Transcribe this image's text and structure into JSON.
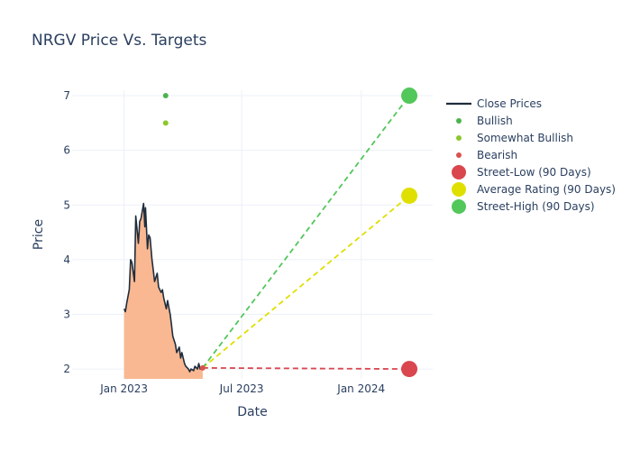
{
  "chart_data": {
    "type": "line",
    "title": "NRGV Price Vs. Targets",
    "xlabel": "Date",
    "ylabel": "Price",
    "xlim": [
      "2022-10-13",
      "2024-04-20"
    ],
    "ylim": [
      1.82,
      7.1
    ],
    "x_ticks": [
      {
        "date": "2023-01-01",
        "label": "Jan 2023"
      },
      {
        "date": "2023-07-01",
        "label": "Jul 2023"
      },
      {
        "date": "2024-01-01",
        "label": "Jan 2024"
      }
    ],
    "y_ticks": [
      2,
      3,
      4,
      5,
      6,
      7
    ],
    "grid": true,
    "legend_position": "right",
    "close_prices": {
      "name": "Close Prices",
      "color": "#1f2d3d",
      "fill_color": "#f9b891",
      "x": [
        "2023-01-01",
        "2023-01-03",
        "2023-01-05",
        "2023-01-09",
        "2023-01-11",
        "2023-01-13",
        "2023-01-17",
        "2023-01-19",
        "2023-01-23",
        "2023-01-25",
        "2023-01-27",
        "2023-01-31",
        "2023-02-02",
        "2023-02-03",
        "2023-02-06",
        "2023-02-08",
        "2023-02-10",
        "2023-02-13",
        "2023-02-15",
        "2023-02-17",
        "2023-02-21",
        "2023-02-23",
        "2023-02-27",
        "2023-03-01",
        "2023-03-03",
        "2023-03-07",
        "2023-03-09",
        "2023-03-13",
        "2023-03-15",
        "2023-03-17",
        "2023-03-21",
        "2023-03-23",
        "2023-03-27",
        "2023-03-29",
        "2023-03-31",
        "2023-04-04",
        "2023-04-06",
        "2023-04-10",
        "2023-04-12",
        "2023-04-14",
        "2023-04-18",
        "2023-04-20",
        "2023-04-24",
        "2023-04-26",
        "2023-04-28",
        "2023-05-02"
      ],
      "values": [
        3.1,
        3.05,
        3.2,
        3.45,
        4.0,
        3.95,
        3.6,
        4.8,
        4.3,
        4.7,
        4.75,
        5.03,
        4.6,
        4.95,
        4.2,
        4.45,
        4.4,
        4.0,
        3.8,
        3.6,
        3.75,
        3.5,
        3.4,
        3.45,
        3.3,
        3.1,
        3.25,
        3.0,
        2.8,
        2.6,
        2.45,
        2.3,
        2.4,
        2.2,
        2.3,
        2.1,
        2.05,
        2.0,
        1.95,
        2.0,
        1.97,
        2.05,
        2.0,
        2.1,
        2.0,
        2.02
      ]
    },
    "ratings": [
      {
        "name": "Bullish",
        "color": "#4db34d",
        "x": [
          "2023-03-06"
        ],
        "values": [
          7.0
        ]
      },
      {
        "name": "Somewhat Bullish",
        "color": "#8bc82c",
        "x": [
          "2023-03-06"
        ],
        "values": [
          6.5
        ]
      },
      {
        "name": "Bearish",
        "color": "#d9534f",
        "x": [],
        "values": []
      }
    ],
    "targets": [
      {
        "name": "Street-Low (90 Days)",
        "color": "#d9464e",
        "value": 2.0,
        "x": "2024-03-15"
      },
      {
        "name": "Average Rating (90 Days)",
        "color": "#dfdf00",
        "value": 5.17,
        "x": "2024-03-15"
      },
      {
        "name": "Street-High (90 Days)",
        "color": "#52c75a",
        "value": 7.0,
        "x": "2024-03-15"
      }
    ],
    "projection_start": {
      "x": "2023-05-02",
      "value": 2.02
    }
  }
}
